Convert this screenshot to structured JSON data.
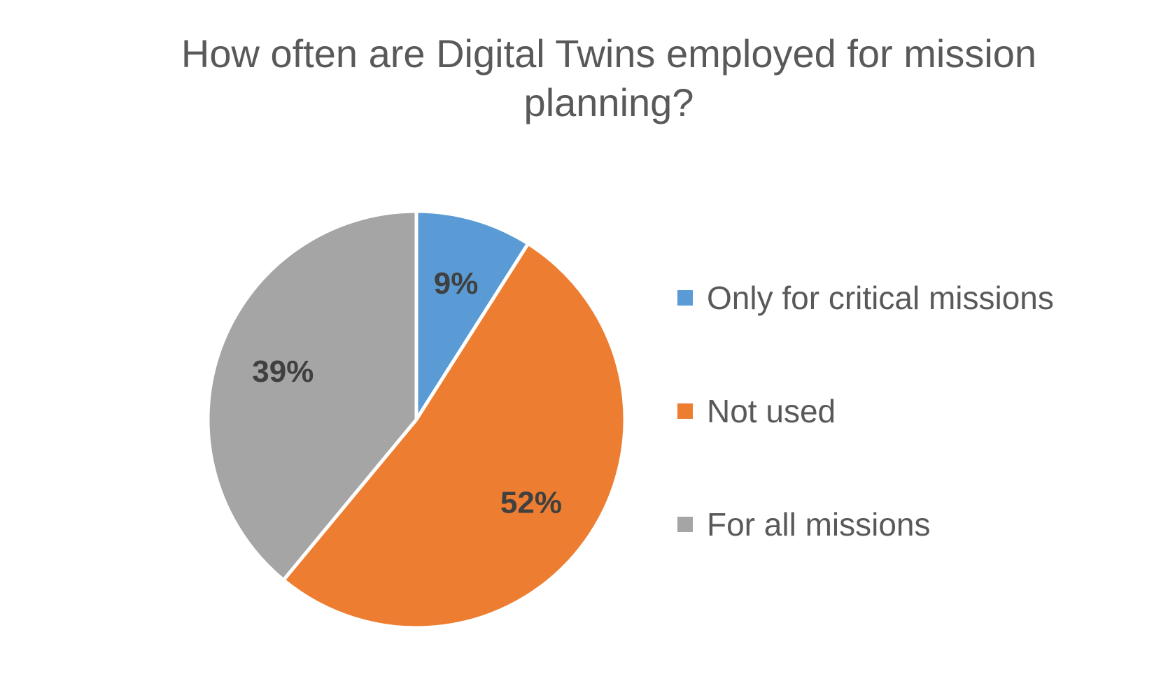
{
  "chart_data": {
    "type": "pie",
    "title": "How often are Digital Twins employed for mission planning?",
    "categories": [
      "Only for critical missions",
      "Not used",
      "For all missions"
    ],
    "values": [
      9,
      52,
      39
    ],
    "value_labels": [
      "9%",
      "52%",
      "39%"
    ],
    "colors": [
      "#5B9BD5",
      "#ED7D31",
      "#A5A5A5"
    ],
    "legend_position": "right",
    "start_angle": "12 o'clock, clockwise"
  }
}
